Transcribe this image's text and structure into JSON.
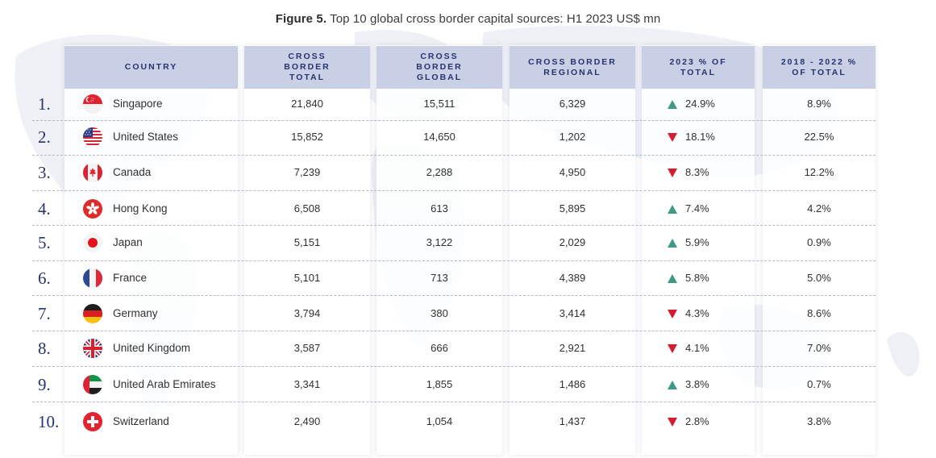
{
  "title": {
    "figure_label": "Figure 5.",
    "text": "Top 10 global cross border capital sources: H1 2023 US$ mn"
  },
  "colors": {
    "header_bg": "#c9cfe4",
    "header_text": "#27336f",
    "up": "#3f9987",
    "down": "#d51c2f",
    "rank": "#28336e"
  },
  "chart_data": {
    "type": "table",
    "title": "Top 10 global cross border capital sources: H1 2023 US$ mn",
    "columns": [
      "COUNTRY",
      "CROSS BORDER TOTAL",
      "CROSS BORDER GLOBAL",
      "CROSS BORDER REGIONAL",
      "2023 % OF TOTAL",
      "2018 - 2022 % OF TOTAL"
    ],
    "rows": [
      {
        "rank": "1.",
        "country": "Singapore",
        "flag": "singapore-flag-icon",
        "total": "21,840",
        "global": "15,511",
        "regional": "6,329",
        "pct2023": "24.9%",
        "trend": "up",
        "pct1822": "8.9%"
      },
      {
        "rank": "2.",
        "country": "United States",
        "flag": "usa-flag-icon",
        "total": "15,852",
        "global": "14,650",
        "regional": "1,202",
        "pct2023": "18.1%",
        "trend": "down",
        "pct1822": "22.5%"
      },
      {
        "rank": "3.",
        "country": "Canada",
        "flag": "canada-flag-icon",
        "total": "7,239",
        "global": "2,288",
        "regional": "4,950",
        "pct2023": "8.3%",
        "trend": "down",
        "pct1822": "12.2%"
      },
      {
        "rank": "4.",
        "country": "Hong Kong",
        "flag": "hongkong-flag-icon",
        "total": "6,508",
        "global": "613",
        "regional": "5,895",
        "pct2023": "7.4%",
        "trend": "up",
        "pct1822": "4.2%"
      },
      {
        "rank": "5.",
        "country": "Japan",
        "flag": "japan-flag-icon",
        "total": "5,151",
        "global": "3,122",
        "regional": "2,029",
        "pct2023": "5.9%",
        "trend": "up",
        "pct1822": "0.9%"
      },
      {
        "rank": "6.",
        "country": "France",
        "flag": "france-flag-icon",
        "total": "5,101",
        "global": "713",
        "regional": "4,389",
        "pct2023": "5.8%",
        "trend": "up",
        "pct1822": "5.0%"
      },
      {
        "rank": "7.",
        "country": "Germany",
        "flag": "germany-flag-icon",
        "total": "3,794",
        "global": "380",
        "regional": "3,414",
        "pct2023": "4.3%",
        "trend": "down",
        "pct1822": "8.6%"
      },
      {
        "rank": "8.",
        "country": "United Kingdom",
        "flag": "uk-flag-icon",
        "total": "3,587",
        "global": "666",
        "regional": "2,921",
        "pct2023": "4.1%",
        "trend": "down",
        "pct1822": "7.0%"
      },
      {
        "rank": "9.",
        "country": "United Arab Emirates",
        "flag": "uae-flag-icon",
        "total": "3,341",
        "global": "1,855",
        "regional": "1,486",
        "pct2023": "3.8%",
        "trend": "up",
        "pct1822": "0.7%"
      },
      {
        "rank": "10.",
        "country": "Switzerland",
        "flag": "switzerland-flag-icon",
        "total": "2,490",
        "global": "1,054",
        "regional": "1,437",
        "pct2023": "2.8%",
        "trend": "down",
        "pct1822": "3.8%"
      }
    ]
  }
}
